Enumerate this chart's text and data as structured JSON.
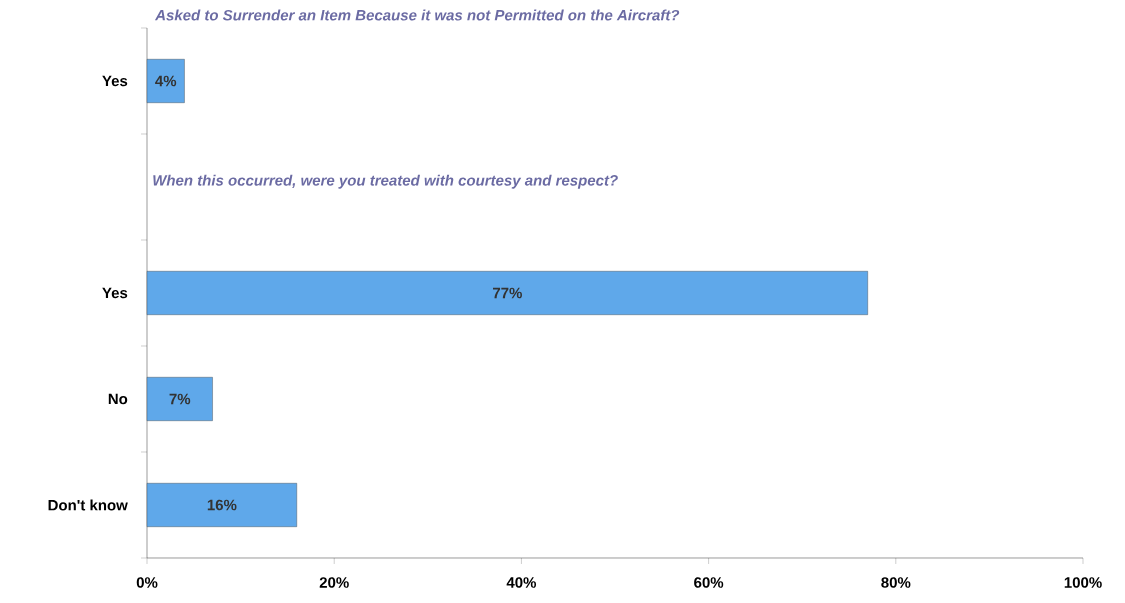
{
  "chart_data": {
    "type": "bar",
    "orientation": "horizontal",
    "title": "Asked to Surrender an Item Because it was not Permitted on the Aircraft?",
    "annotations": [
      "When this occurred, were you treated with courtesy and respect?"
    ],
    "categories": [
      "Yes",
      null,
      "Yes",
      "No",
      "Don't know"
    ],
    "values": [
      4,
      null,
      77,
      7,
      16
    ],
    "value_labels": [
      "4%",
      null,
      "77%",
      "7%",
      "16%"
    ],
    "color": "#5fa8ea",
    "xlim": [
      0,
      100
    ],
    "xticks": [
      {
        "value": 0,
        "label": "0%"
      },
      {
        "value": 20,
        "label": "20%"
      },
      {
        "value": 40,
        "label": "40%"
      },
      {
        "value": 60,
        "label": "60%"
      },
      {
        "value": 80,
        "label": "80%"
      },
      {
        "value": 100,
        "label": "100%"
      }
    ],
    "grid": false
  }
}
